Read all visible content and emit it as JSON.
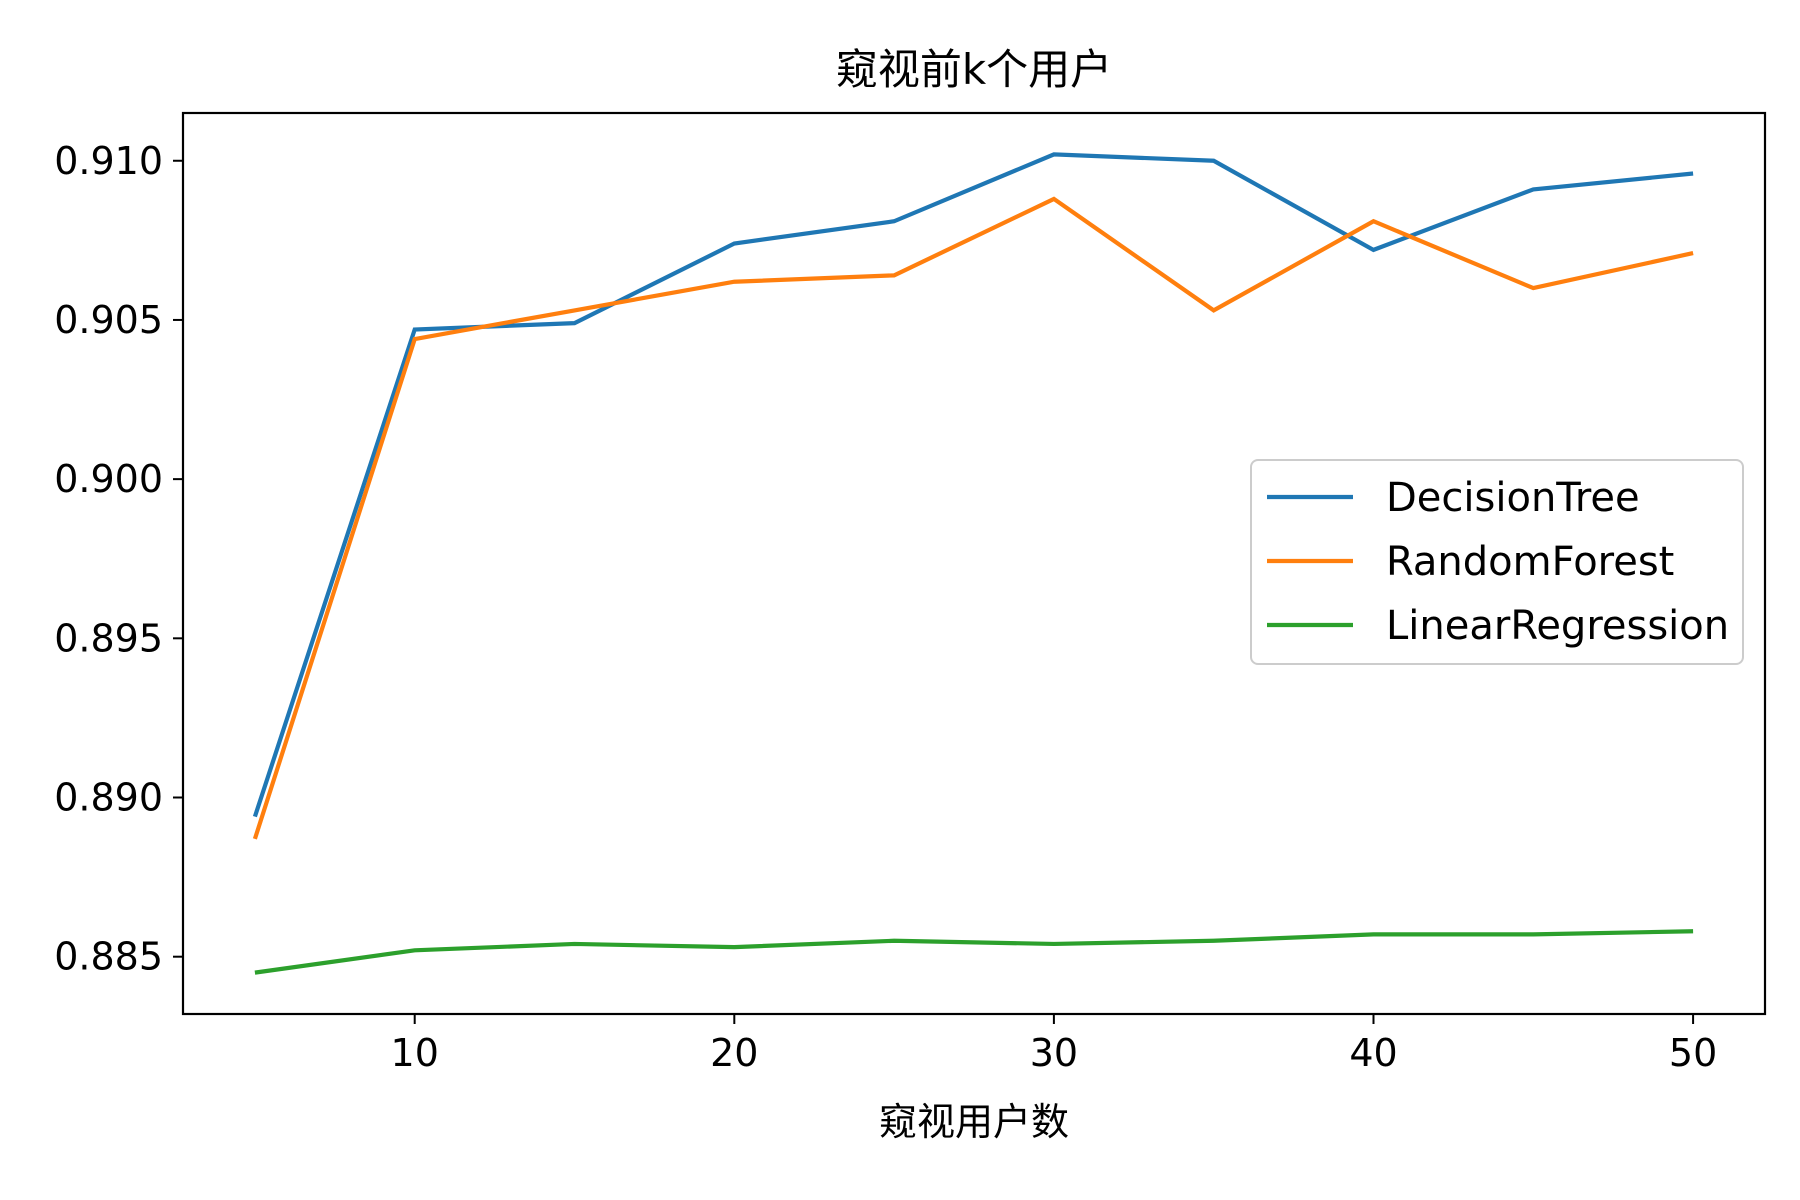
{
  "chart_data": {
    "type": "line",
    "title": "窥视前k个用户",
    "xlabel": "窥视用户数",
    "ylabel": "",
    "x": [
      5,
      10,
      15,
      20,
      25,
      30,
      35,
      40,
      45,
      50
    ],
    "xlim": [
      2.75,
      52.25
    ],
    "ylim": [
      0.8832,
      0.9115
    ],
    "xticks": [
      10,
      20,
      30,
      40,
      50
    ],
    "xtick_labels": [
      "10",
      "20",
      "30",
      "40",
      "50"
    ],
    "yticks": [
      0.885,
      0.89,
      0.895,
      0.9,
      0.905,
      0.91
    ],
    "ytick_labels": [
      "0.885",
      "0.890",
      "0.895",
      "0.900",
      "0.905",
      "0.910"
    ],
    "grid": false,
    "legend_position": "center-right",
    "series": [
      {
        "name": "DecisionTree",
        "color": "#1f77b4",
        "values": [
          0.8894,
          0.9047,
          0.9049,
          0.9074,
          0.9081,
          0.9102,
          0.91,
          0.9072,
          0.9091,
          0.9096
        ]
      },
      {
        "name": "RandomForest",
        "color": "#ff7f0e",
        "values": [
          0.8887,
          0.9044,
          0.9053,
          0.9062,
          0.9064,
          0.9088,
          0.9053,
          0.9081,
          0.906,
          0.9071
        ]
      },
      {
        "name": "LinearRegression",
        "color": "#2ca02c",
        "values": [
          0.8845,
          0.8852,
          0.8854,
          0.8853,
          0.8855,
          0.8854,
          0.8855,
          0.8857,
          0.8857,
          0.8858
        ]
      }
    ]
  }
}
